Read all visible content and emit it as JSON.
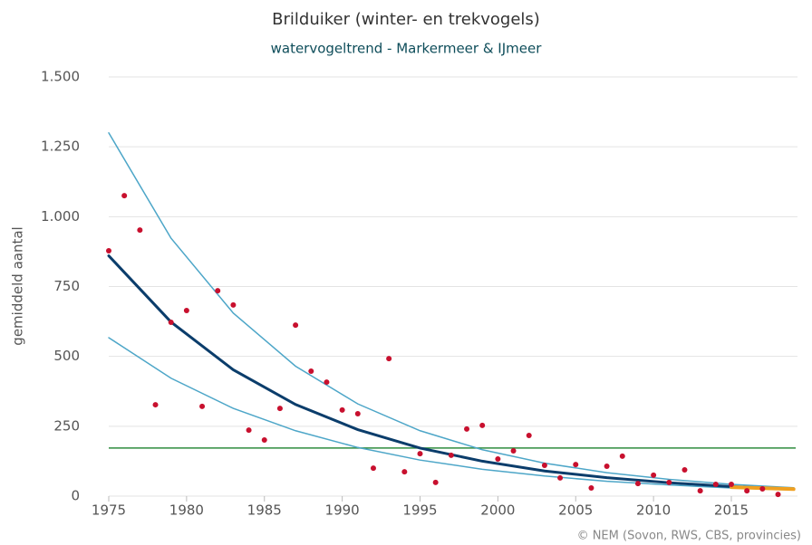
{
  "chart_data": {
    "type": "scatter",
    "title": "Brilduiker (winter- en trekvogels)",
    "subtitle": "watervogeltrend - Markermeer & IJmeer",
    "ylabel": "gemiddeld aantal",
    "credit": "© NEM (Sovon, RWS, CBS, provincies)",
    "color": "#c8102e",
    "x": [
      1975,
      1976,
      1977,
      1978,
      1979,
      1980,
      1981,
      1982,
      1983,
      1984,
      1985,
      1986,
      1987,
      1988,
      1989,
      1990,
      1991,
      1992,
      1993,
      1994,
      1995,
      1996,
      1997,
      1998,
      1999,
      2000,
      2001,
      2002,
      2003,
      2004,
      2005,
      2006,
      2007,
      2008,
      2009,
      2010,
      2011,
      2012,
      2013,
      2014,
      2015,
      2016,
      2017,
      2018
    ],
    "values": [
      878,
      1075,
      952,
      327,
      622,
      664,
      321,
      735,
      684,
      236,
      201,
      314,
      612,
      447,
      408,
      308,
      295,
      100,
      492,
      87,
      152,
      49,
      146,
      240,
      253,
      133,
      162,
      217,
      110,
      65,
      113,
      29,
      107,
      143,
      45,
      75,
      49,
      94,
      19,
      42,
      42,
      19,
      26,
      6
    ],
    "lines": [
      {
        "color": "#4da6c8",
        "x": [
          1975,
          1979,
          1983,
          1987,
          1991,
          1995,
          1999,
          2003,
          2007,
          2011,
          2015,
          2019
        ],
        "values": [
          1300,
          923,
          655,
          465,
          330,
          234,
          166,
          118,
          84,
          60,
          42,
          30
        ]
      },
      {
        "color": "#4da6c8",
        "x": [
          1975,
          1979,
          1983,
          1987,
          1991,
          1995,
          1999,
          2003,
          2007,
          2011,
          2015,
          2019
        ],
        "values": [
          567,
          422,
          314,
          234,
          174,
          129,
          96,
          72,
          53,
          40,
          29,
          22
        ]
      },
      {
        "color": "#0b3d6b",
        "x": [
          1975,
          1979,
          1983,
          1987,
          1991,
          1995,
          1999,
          2003,
          2007,
          2011,
          2015,
          2019
        ],
        "values": [
          860,
          623,
          452,
          328,
          238,
          172,
          125,
          90,
          66,
          48,
          34,
          25
        ]
      },
      {
        "color": "#f0a020",
        "x": [
          2015,
          2019
        ],
        "values": [
          32,
          25
        ]
      }
    ],
    "reference_line": {
      "value": 172,
      "color": "#2e8b3e"
    },
    "xlim": [
      1975,
      2019
    ],
    "xticks": [
      1975,
      1980,
      1985,
      1990,
      1995,
      2000,
      2005,
      2010,
      2015
    ],
    "ylim": [
      0,
      1500
    ],
    "yticks": [
      0,
      250,
      500,
      750,
      {
        "value": 1000,
        "label": "1.000"
      },
      {
        "value": 1250,
        "label": "1.250"
      },
      {
        "value": 1500,
        "label": "1.500"
      }
    ],
    "grid": true
  }
}
